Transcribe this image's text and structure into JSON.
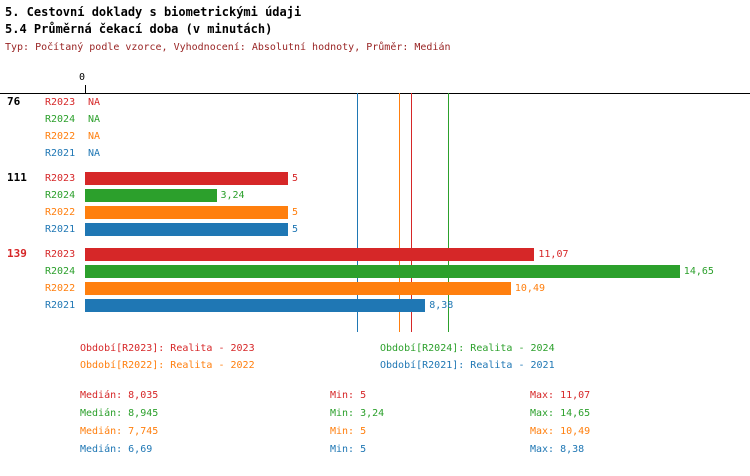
{
  "title": "5. Cestovní doklady s biometrickými údaji",
  "subtitle": "5.4 Průměrná čekací doba (v minutách)",
  "meta": "Typ: Počítaný podle vzorce, Vyhodnocení: Absolutní hodnoty, Průměr: Medián",
  "colors": {
    "R2023": "#d62728",
    "R2024": "#2ca02c",
    "R2022": "#ff7f0e",
    "R2021": "#1f77b4"
  },
  "chart_data": {
    "type": "bar",
    "orientation": "horizontal",
    "title": "5.4 Průměrná čekací doba (v minutách)",
    "xlabel": "",
    "ylabel": "",
    "xlim": [
      0,
      16.4
    ],
    "x_axis": {
      "zero_label": "0"
    },
    "series_order": [
      "R2023",
      "R2024",
      "R2022",
      "R2021"
    ],
    "groups": [
      {
        "label": "76",
        "label_color": "#000000",
        "rows": [
          {
            "series": "R2023",
            "value": null,
            "label": "NA"
          },
          {
            "series": "R2024",
            "value": null,
            "label": "NA"
          },
          {
            "series": "R2022",
            "value": null,
            "label": "NA"
          },
          {
            "series": "R2021",
            "value": null,
            "label": "NA"
          }
        ]
      },
      {
        "label": "111",
        "label_color": "#000000",
        "rows": [
          {
            "series": "R2023",
            "value": 5,
            "label": "5"
          },
          {
            "series": "R2024",
            "value": 3.24,
            "label": "3,24"
          },
          {
            "series": "R2022",
            "value": 5,
            "label": "5"
          },
          {
            "series": "R2021",
            "value": 5,
            "label": "5"
          }
        ]
      },
      {
        "label": "139",
        "label_color": "#d62728",
        "rows": [
          {
            "series": "R2023",
            "value": 11.07,
            "label": "11,07"
          },
          {
            "series": "R2024",
            "value": 14.65,
            "label": "14,65"
          },
          {
            "series": "R2022",
            "value": 10.49,
            "label": "10,49"
          },
          {
            "series": "R2021",
            "value": 8.38,
            "label": "8,38"
          }
        ]
      }
    ],
    "median_lines": [
      {
        "series": "R2023",
        "value": 8.035
      },
      {
        "series": "R2024",
        "value": 8.945
      },
      {
        "series": "R2022",
        "value": 7.745
      },
      {
        "series": "R2021",
        "value": 6.69
      }
    ]
  },
  "legend": {
    "items": [
      {
        "series": "R2023",
        "text": "Období[R2023]: Realita - 2023"
      },
      {
        "series": "R2024",
        "text": "Období[R2024]: Realita - 2024"
      },
      {
        "series": "R2022",
        "text": "Období[R2022]: Realita - 2022"
      },
      {
        "series": "R2021",
        "text": "Období[R2021]: Realita - 2021"
      }
    ]
  },
  "stats": {
    "rows": [
      {
        "series": "R2023",
        "median": "Medián: 8,035",
        "min": "Min: 5",
        "max": "Max: 11,07"
      },
      {
        "series": "R2024",
        "median": "Medián: 8,945",
        "min": "Min: 3,24",
        "max": "Max: 14,65"
      },
      {
        "series": "R2022",
        "median": "Medián: 7,745",
        "min": "Min: 5",
        "max": "Max: 10,49"
      },
      {
        "series": "R2021",
        "median": "Medián: 6,69",
        "min": "Min: 5",
        "max": "Max: 8,38"
      }
    ]
  }
}
